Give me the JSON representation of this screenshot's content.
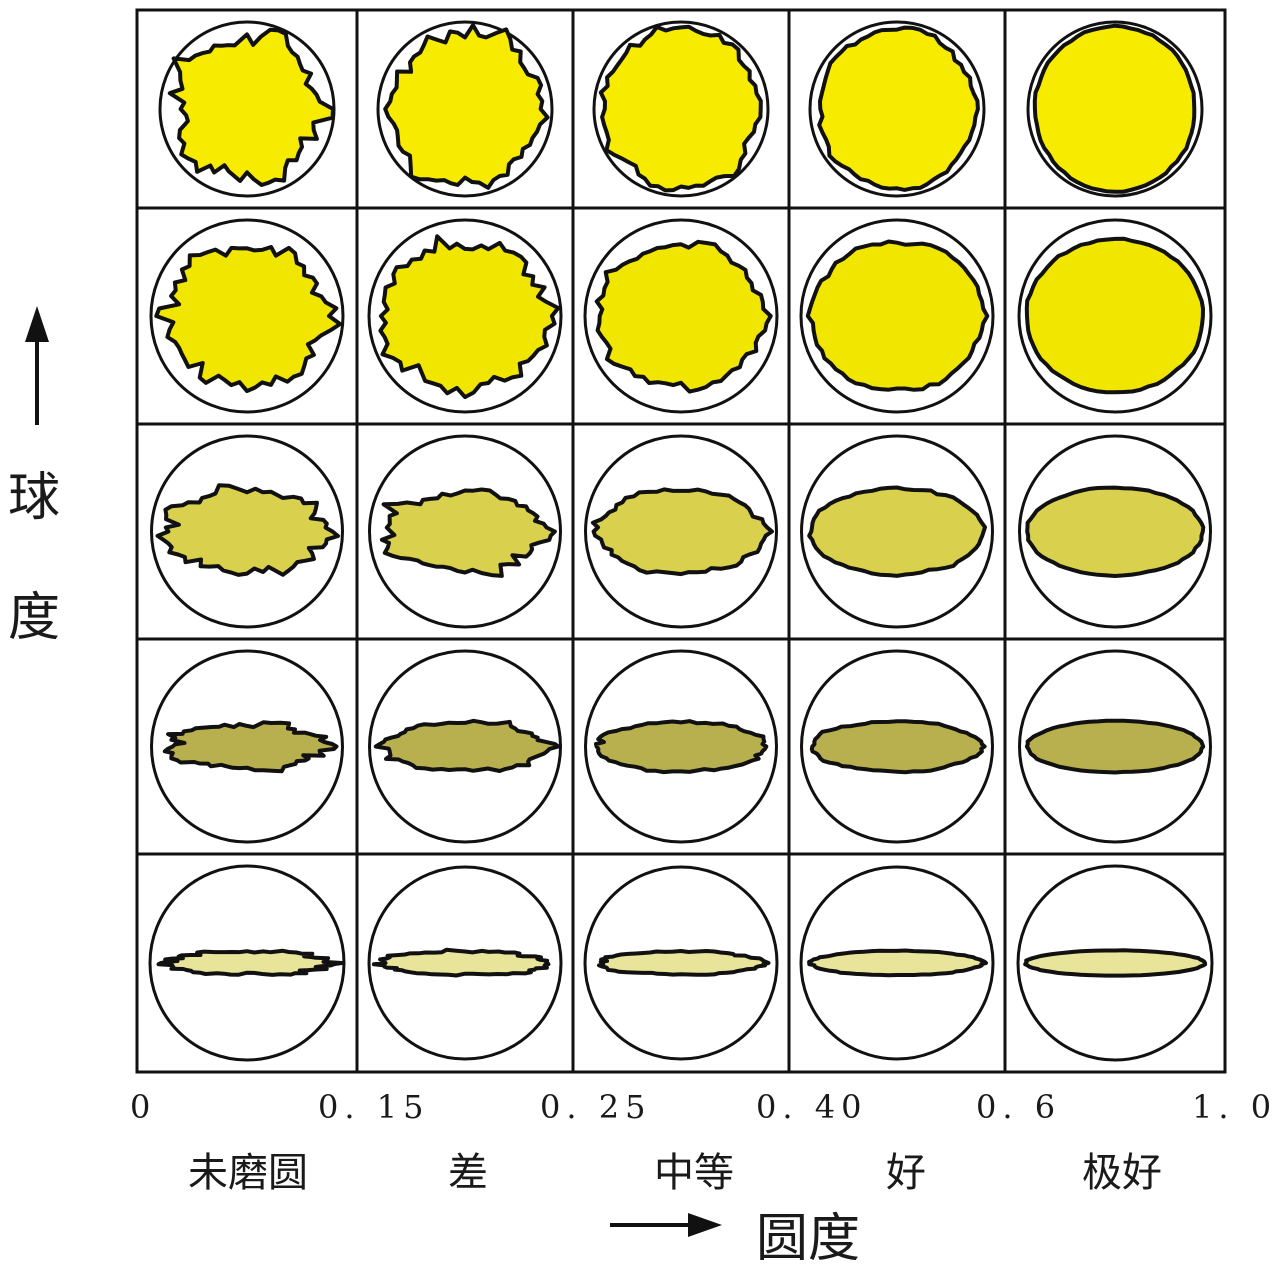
{
  "x_axis": {
    "title": "圆度",
    "ticks": [
      "0",
      "0. 15",
      "0. 25",
      "0. 40",
      "0. 6",
      "1. 0"
    ],
    "classes": [
      "未磨圆",
      "差",
      "中等",
      "好",
      "极好"
    ]
  },
  "y_axis": {
    "title_chars": [
      "球",
      "度"
    ]
  },
  "grid": {
    "columns": 5,
    "rows": 5,
    "fill_colors_by_row": [
      "#f7eb00",
      "#f1e600",
      "#d9d04d",
      "#b8b04f",
      "#e8e59a"
    ]
  }
}
